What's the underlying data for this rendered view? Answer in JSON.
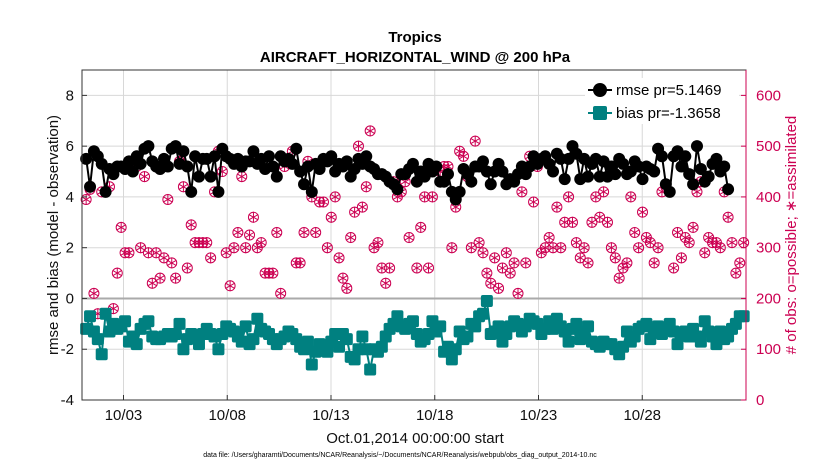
{
  "chart_data": {
    "type": "line",
    "title": "Tropics",
    "subtitle": "AIRCRAFT_HORIZONTAL_WIND @ 200 hPa",
    "xlabel": "Oct.01,2014 00:00:00 start",
    "ylabel_left": "rmse and bias (model - observation)",
    "ylabel_right": "# of obs: o=possible; ∗=assimilated",
    "ylim_left": [
      -4,
      9
    ],
    "ylim_right": [
      0,
      650
    ],
    "xlim_days": [
      1.0,
      33.0
    ],
    "x_tick_labels": [
      "10/03",
      "10/08",
      "10/13",
      "10/18",
      "10/23",
      "10/28"
    ],
    "x_tick_days": [
      3,
      8,
      13,
      18,
      23,
      28
    ],
    "y_ticks_left": [
      "-4",
      "-2",
      "0",
      "2",
      "4",
      "6",
      "8"
    ],
    "y_ticks_right": [
      "0",
      "100",
      "200",
      "300",
      "400",
      "500",
      "600"
    ],
    "grid": true,
    "legend_position": "top-right",
    "footer": "data file: /Users/gharamti/Documents/NCAR/Reanalysis/~/Documents/NCAR/Reanalysis/webpub/obs_diag_output_2014-10.nc",
    "colors": {
      "rmse": "#000000",
      "bias": "#008080",
      "obs": "#cc0052",
      "grid": "#d8d8d8",
      "zero": "#aaaaaa"
    },
    "series": [
      {
        "name": "rmse",
        "legend": "rmse pr=5.1469",
        "values": [
          5.5,
          4.4,
          5.8,
          5.6,
          5.3,
          4.2,
          5.1,
          4.9,
          5.2,
          5.2,
          5.1,
          5.4,
          5.0,
          5.6,
          5.3,
          5.9,
          6.0,
          5.4,
          5.2,
          5.1,
          5.5,
          5.2,
          5.9,
          6.0,
          5.3,
          5.8,
          5.2,
          4.2,
          5.6,
          4.8,
          5.5,
          5.5,
          4.8,
          5.6,
          4.2,
          5.9,
          5.6,
          5.5,
          5.3,
          5.5,
          5.2,
          5.4,
          5.4,
          5.8,
          5.3,
          5.5,
          5.1,
          5.6,
          5.2,
          4.8,
          5.6,
          5.4,
          5.5,
          5.3,
          5.9,
          5.0,
          4.5,
          5.2,
          4.2,
          5.3,
          5.1,
          5.5,
          5.4,
          5.6,
          5.0,
          5.3,
          5.2,
          5.4,
          4.8,
          5.1,
          5.5,
          5.3,
          5.6,
          5.2,
          5.1,
          4.9,
          4.9,
          4.8,
          4.6,
          4.5,
          4.3,
          4.9,
          4.9,
          5.1,
          5.3,
          4.6,
          5.0,
          4.8,
          5.3,
          5.0,
          5.2,
          4.6,
          4.6,
          4.9,
          4.2,
          3.9,
          4.2,
          5.1,
          4.9,
          4.6,
          5.2,
          5.2,
          5.4,
          5.0,
          4.5,
          5.0,
          5.3,
          5.0,
          4.5,
          4.7,
          4.6,
          4.9,
          5.2,
          4.9,
          5.2,
          5.6,
          5.3,
          5.5,
          5.6,
          5.3,
          5.0,
          5.7,
          5.5,
          4.7,
          5.5,
          6.0,
          5.7,
          4.7,
          5.5,
          4.8,
          5.3,
          5.5,
          4.8,
          5.4,
          4.8,
          5.2,
          4.9,
          5.5,
          5.3,
          4.9,
          5.0,
          5.4,
          5.2,
          4.7,
          5.2,
          5.1,
          5.0,
          5.9,
          5.6,
          4.5,
          4.2,
          5.6,
          5.8,
          5.2,
          5.6,
          4.9,
          4.5,
          6.0,
          5.1,
          4.6,
          4.8,
          5.3,
          5.5,
          5.0,
          5.2,
          4.3
        ],
        "x_start_day": 1.2,
        "x_step_day": 0.1875
      },
      {
        "name": "bias",
        "legend": "bias pr=-1.3658",
        "values": [
          -1.2,
          -0.7,
          -1.3,
          -1.6,
          -2.2,
          -0.6,
          -1.3,
          -1.0,
          -1.2,
          -1.1,
          -0.9,
          -1.7,
          -1.5,
          -1.8,
          -1.2,
          -1.0,
          -0.9,
          -1.5,
          -1.6,
          -1.6,
          -1.5,
          -1.4,
          -1.5,
          -1.4,
          -1.0,
          -2.0,
          -1.6,
          -1.4,
          -1.5,
          -1.8,
          -1.4,
          -1.2,
          -1.4,
          -1.5,
          -2.0,
          -1.4,
          -1.1,
          -1.2,
          -1.3,
          -1.5,
          -1.7,
          -1.1,
          -1.8,
          -1.6,
          -0.8,
          -1.2,
          -1.3,
          -1.4,
          -1.6,
          -1.8,
          -1.6,
          -1.5,
          -1.3,
          -1.4,
          -1.6,
          -1.9,
          -2.0,
          -1.7,
          -2.6,
          -2.1,
          -1.8,
          -2.0,
          -2.1,
          -1.7,
          -1.4,
          -1.9,
          -1.4,
          -1.6,
          -2.3,
          -2.4,
          -2.0,
          -1.5,
          -2.0,
          -2.8,
          -2.0,
          -2.1,
          -1.9,
          -1.5,
          -1.2,
          -1.0,
          -0.7,
          -1.1,
          -1.2,
          -1.0,
          -0.9,
          -1.4,
          -1.7,
          -1.6,
          -1.4,
          -0.9,
          -1.3,
          -1.1,
          -2.1,
          -1.9,
          -2.4,
          -2.0,
          -1.3,
          -1.6,
          -1.5,
          -1.0,
          -1.1,
          -0.7,
          -0.6,
          -0.1,
          -1.4,
          -1.3,
          -1.1,
          -1.7,
          -1.4,
          -1.1,
          -0.9,
          -1.0,
          -1.3,
          -1.1,
          -0.8,
          -0.9,
          -1.0,
          -1.4,
          -1.2,
          -0.9,
          -1.2,
          -0.8,
          -1.1,
          -1.3,
          -1.7,
          -1.2,
          -1.0,
          -1.6,
          -1.3,
          -1.1,
          -1.7,
          -1.8,
          -1.9,
          -1.7,
          -1.8,
          -1.8,
          -2.0,
          -2.2,
          -1.9,
          -1.3,
          -1.7,
          -1.5,
          -1.2,
          -1.1,
          -1.0,
          -1.6,
          -1.2,
          -1.1,
          -1.4,
          -1.2,
          -1.0,
          -1.3,
          -1.8,
          -1.4,
          -1.3,
          -1.5,
          -1.2,
          -1.5,
          -1.7,
          -0.9,
          -1.3,
          -1.5,
          -1.8,
          -1.3,
          -1.6,
          -1.5,
          -1.2,
          -1.0,
          -0.7,
          -0.7
        ],
        "x_start_day": 1.2,
        "x_step_day": 0.1875
      }
    ],
    "obs_counts": [
      395,
      415,
      210,
      170,
      410,
      410,
      420,
      180,
      250,
      340,
      290,
      290,
      460,
      460,
      300,
      440,
      290,
      230,
      290,
      240,
      280,
      395,
      270,
      240,
      470,
      420,
      260,
      345,
      310,
      310,
      310,
      310,
      280,
      410,
      490,
      450,
      290,
      225,
      300,
      330,
      440,
      300,
      325,
      360,
      300,
      310,
      250,
      250,
      250,
      330,
      210,
      460,
      470,
      490,
      270,
      270,
      330,
      470,
      400,
      330,
      390,
      390,
      300,
      360,
      400,
      280,
      240,
      220,
      320,
      370,
      500,
      380,
      420,
      530,
      300,
      310,
      260,
      230,
      260,
      430,
      400,
      410,
      430,
      320,
      460,
      260,
      340,
      400,
      260,
      400,
      460,
      450,
      460,
      460,
      300,
      380,
      490,
      480,
      440,
      300,
      510,
      310,
      290,
      250,
      230,
      280,
      220,
      260,
      290,
      250,
      270,
      210,
      410,
      270,
      480,
      390,
      460,
      290,
      300,
      320,
      300,
      380,
      300,
      350,
      400,
      350,
      310,
      280,
      300,
      270,
      350,
      400,
      360,
      410,
      350,
      300,
      280,
      240,
      260,
      270,
      400,
      330,
      300,
      370,
      320,
      310,
      270,
      300,
      410,
      420,
      410,
      260,
      330,
      280,
      320,
      310,
      340,
      410,
      430,
      290,
      320,
      310,
      310,
      300,
      410,
      360,
      310,
      250,
      270,
      310
    ],
    "obs_x_start_day": 1.2,
    "obs_x_step_day": 0.1875
  }
}
